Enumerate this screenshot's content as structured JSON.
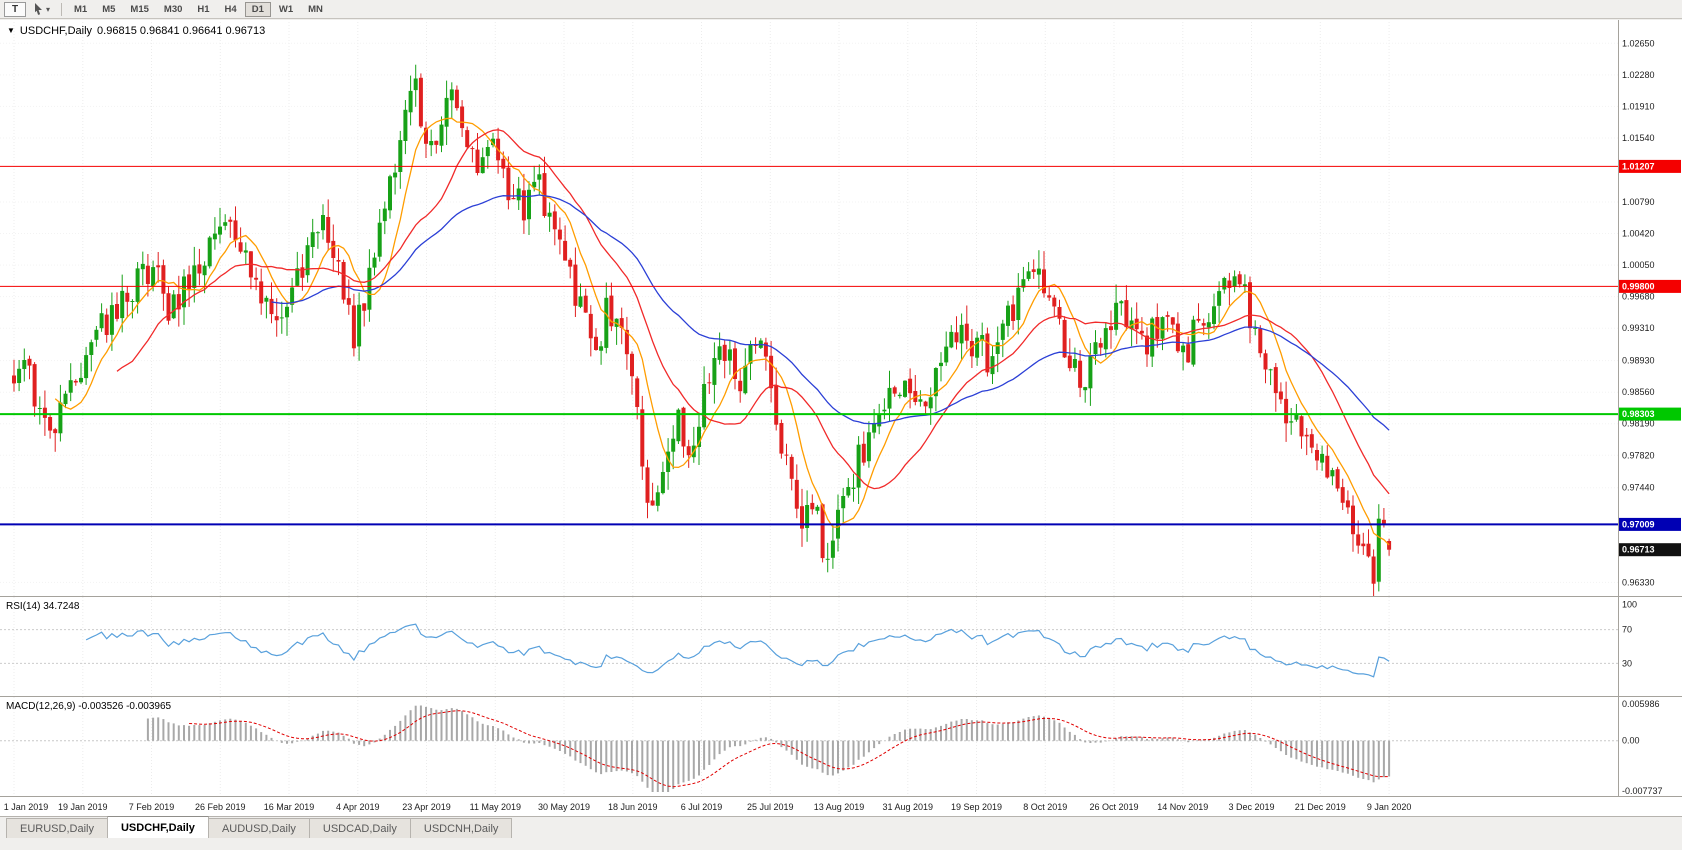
{
  "toolbar": {
    "tool_button_label": "T",
    "timeframes": [
      {
        "label": "M1",
        "active": false
      },
      {
        "label": "M5",
        "active": false
      },
      {
        "label": "M15",
        "active": false
      },
      {
        "label": "M30",
        "active": false
      },
      {
        "label": "H1",
        "active": false
      },
      {
        "label": "H4",
        "active": false
      },
      {
        "label": "D1",
        "active": true
      },
      {
        "label": "W1",
        "active": false
      },
      {
        "label": "MN",
        "active": false
      }
    ]
  },
  "chart_header": {
    "collapse_icon": "▼",
    "symbol": "USDCHF,Daily",
    "ohlc_text": "0.96815 0.96841 0.96641 0.96713"
  },
  "chart_data": {
    "type": "candlestick",
    "symbol": "USDCHF",
    "timeframe": "Daily",
    "last_candle": {
      "open": 0.96815,
      "high": 0.96841,
      "low": 0.96641,
      "close": 0.96713
    },
    "price_range": {
      "min": 0.9617,
      "max": 1.029
    },
    "y_axis_labels": [
      "1.02650",
      "1.02280",
      "1.01910",
      "1.01540",
      "1.00790",
      "1.00420",
      "1.00050",
      "0.99680",
      "0.99310",
      "0.98930",
      "0.98560",
      "0.98190",
      "0.97820",
      "0.97440",
      "0.96330"
    ],
    "x_ticks": [
      "1 Jan 2019",
      "19 Jan 2019",
      "7 Feb 2019",
      "26 Feb 2019",
      "16 Mar 2019",
      "4 Apr 2019",
      "23 Apr 2019",
      "11 May 2019",
      "30 May 2019",
      "18 Jun 2019",
      "6 Jul 2019",
      "25 Jul 2019",
      "13 Aug 2019",
      "31 Aug 2019",
      "19 Sep 2019",
      "8 Oct 2019",
      "26 Oct 2019",
      "14 Nov 2019",
      "3 Dec 2019",
      "21 Dec 2019",
      "9 Jan 2020"
    ],
    "days_total": 268,
    "noise_seed": 20190101,
    "noise_amp": 0.004,
    "wick_amp": 0.0022,
    "price_waypoints": [
      [
        0,
        0.9868
      ],
      [
        2,
        0.9895
      ],
      [
        5,
        0.9833
      ],
      [
        7,
        0.98
      ],
      [
        10,
        0.9855
      ],
      [
        13,
        0.989
      ],
      [
        17,
        0.9935
      ],
      [
        21,
        0.996
      ],
      [
        24,
        0.9985
      ],
      [
        27,
        1.0
      ],
      [
        30,
        0.9948
      ],
      [
        33,
        0.998
      ],
      [
        36,
        1.0005
      ],
      [
        40,
        1.007
      ],
      [
        43,
        1.0038
      ],
      [
        46,
        0.9995
      ],
      [
        49,
        0.996
      ],
      [
        52,
        0.9935
      ],
      [
        55,
        0.999
      ],
      [
        58,
        1.0045
      ],
      [
        60,
        1.008
      ],
      [
        62,
        1.002
      ],
      [
        64,
        0.996
      ],
      [
        66,
        0.9918
      ],
      [
        68,
        0.996
      ],
      [
        70,
        1.001
      ],
      [
        72,
        1.006
      ],
      [
        74,
        1.012
      ],
      [
        76,
        1.0175
      ],
      [
        78,
        1.0205
      ],
      [
        80,
        1.016
      ],
      [
        82,
        1.014
      ],
      [
        84,
        1.0185
      ],
      [
        86,
        1.02
      ],
      [
        88,
        1.0155
      ],
      [
        90,
        1.012
      ],
      [
        93,
        1.0148
      ],
      [
        96,
        1.01
      ],
      [
        99,
        1.0075
      ],
      [
        102,
        1.01
      ],
      [
        105,
        1.0045
      ],
      [
        107,
        1.0008
      ],
      [
        109,
        0.997
      ],
      [
        111,
        0.993
      ],
      [
        113,
        0.9905
      ],
      [
        115,
        0.995
      ],
      [
        117,
        0.9935
      ],
      [
        119,
        0.9908
      ],
      [
        121,
        0.985
      ],
      [
        123,
        0.9725
      ],
      [
        125,
        0.9755
      ],
      [
        127,
        0.979
      ],
      [
        129,
        0.9825
      ],
      [
        131,
        0.979
      ],
      [
        133,
        0.9825
      ],
      [
        135,
        0.988
      ],
      [
        137,
        0.992
      ],
      [
        139,
        0.99
      ],
      [
        141,
        0.9875
      ],
      [
        143,
        0.993
      ],
      [
        145,
        0.9905
      ],
      [
        147,
        0.986
      ],
      [
        149,
        0.979
      ],
      [
        151,
        0.9735
      ],
      [
        153,
        0.9695
      ],
      [
        155,
        0.9725
      ],
      [
        157,
        0.968
      ],
      [
        158,
        0.9655
      ],
      [
        160,
        0.9715
      ],
      [
        162,
        0.9745
      ],
      [
        164,
        0.9775
      ],
      [
        166,
        0.981
      ],
      [
        168,
        0.984
      ],
      [
        170,
        0.9855
      ],
      [
        173,
        0.988
      ],
      [
        175,
        0.9855
      ],
      [
        177,
        0.984
      ],
      [
        179,
        0.987
      ],
      [
        181,
        0.9905
      ],
      [
        183,
        0.993
      ],
      [
        185,
        0.991
      ],
      [
        187,
        0.9925
      ],
      [
        189,
        0.9895
      ],
      [
        191,
        0.9915
      ],
      [
        193,
        0.994
      ],
      [
        195,
        0.9965
      ],
      [
        197,
        0.999
      ],
      [
        199,
        1.0005
      ],
      [
        201,
        0.9965
      ],
      [
        203,
        0.993
      ],
      [
        205,
        0.989
      ],
      [
        207,
        0.9865
      ],
      [
        209,
        0.989
      ],
      [
        211,
        0.9915
      ],
      [
        213,
        0.9945
      ],
      [
        215,
        0.996
      ],
      [
        217,
        0.993
      ],
      [
        219,
        0.9905
      ],
      [
        221,
        0.9925
      ],
      [
        223,
        0.9945
      ],
      [
        225,
        0.992
      ],
      [
        227,
        0.9895
      ],
      [
        229,
        0.9925
      ],
      [
        231,
        0.9945
      ],
      [
        233,
        0.996
      ],
      [
        235,
        0.9985
      ],
      [
        237,
        1.001
      ],
      [
        239,
        0.9985
      ],
      [
        240,
        0.9945
      ],
      [
        242,
        0.9905
      ],
      [
        244,
        0.9875
      ],
      [
        246,
        0.984
      ],
      [
        248,
        0.982
      ],
      [
        250,
        0.9805
      ],
      [
        253,
        0.979
      ],
      [
        255,
        0.9765
      ],
      [
        257,
        0.974
      ],
      [
        259,
        0.9715
      ],
      [
        261,
        0.9685
      ],
      [
        263,
        0.9655
      ],
      [
        264,
        0.9645
      ],
      [
        265,
        0.969
      ],
      [
        266,
        0.9705
      ],
      [
        267,
        0.96713
      ]
    ],
    "levels": [
      {
        "price": 1.01207,
        "label": "1.01207",
        "color": "#f40000",
        "width": 1
      },
      {
        "price": 0.998,
        "label": "0.99800",
        "color": "#f40000",
        "width": 1
      },
      {
        "price": 0.98303,
        "label": "0.98303",
        "color": "#00c800",
        "width": 2
      },
      {
        "price": 0.97009,
        "label": "0.97009",
        "color": "#0000b4",
        "width": 2
      }
    ],
    "current_price": {
      "label": "0.96713",
      "color": "#111111"
    },
    "candle_colors": {
      "up": "#17a117",
      "down": "#e02020"
    },
    "moving_averages": [
      {
        "name": "ma-fast",
        "period": 8,
        "type": "sma",
        "color": "#ff9d00"
      },
      {
        "name": "ma-medium",
        "period": 20,
        "type": "sma",
        "color": "#f12a2a"
      },
      {
        "name": "ma-slow",
        "period": 50,
        "type": "ema",
        "color": "#2b3fd6"
      }
    ],
    "rsi_panel": {
      "label": "RSI(14) 34.7248",
      "period": 14,
      "current": 34.7248,
      "scale_labels": [
        "100",
        "70",
        "30"
      ],
      "scale_values": [
        100,
        70,
        30
      ],
      "level_lines": [
        70,
        30
      ],
      "line_color": "#58a0dc"
    },
    "macd_panel": {
      "label": "MACD(12,26,9) -0.003526 -0.003965",
      "fast": 12,
      "slow": 26,
      "signal": 9,
      "macd_value": -0.003526,
      "signal_value": -0.003965,
      "scale_top": "0.005986",
      "scale_zero": "0.00",
      "scale_bottom": "-0.007737",
      "scale_top_value": 0.005986,
      "scale_bottom_value": -0.007737,
      "histogram_color": "#a8a8a8",
      "signal_color": "#e00000"
    },
    "grid_color": "#ececec"
  },
  "tabs": [
    {
      "label": "EURUSD,Daily",
      "active": false
    },
    {
      "label": "USDCHF,Daily",
      "active": true
    },
    {
      "label": "AUDUSD,Daily",
      "active": false
    },
    {
      "label": "USDCAD,Daily",
      "active": false
    },
    {
      "label": "USDCNH,Daily",
      "active": false
    }
  ]
}
